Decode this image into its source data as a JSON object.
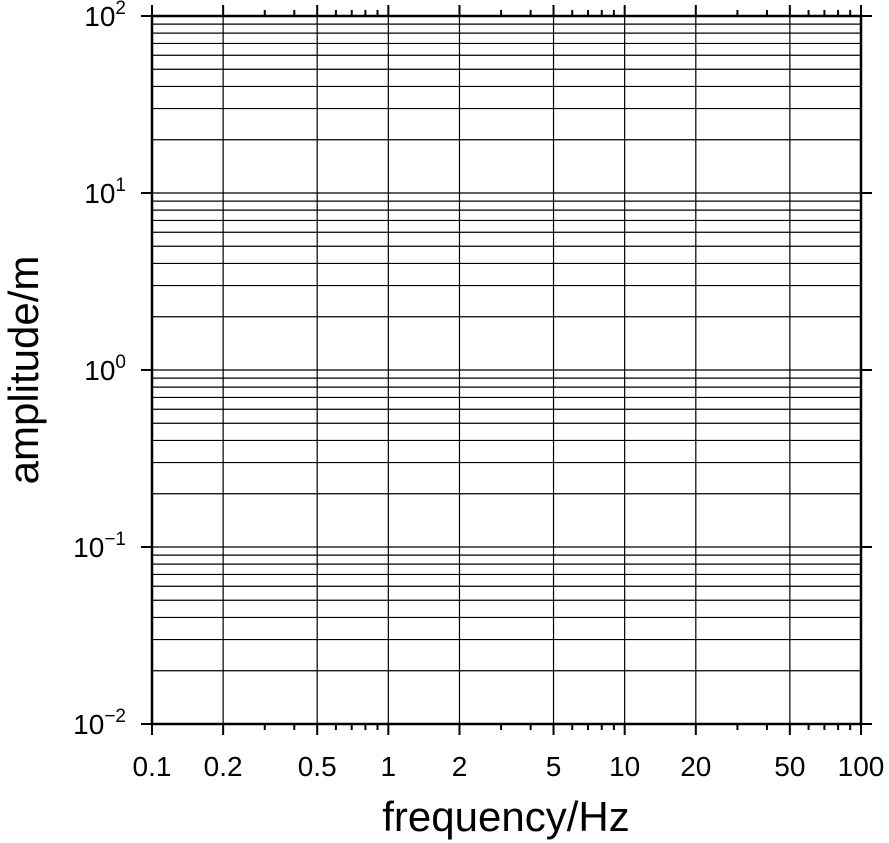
{
  "chart_data": {
    "type": "line",
    "title": "",
    "xlabel": "frequency/Hz",
    "ylabel": "amplitude/m",
    "x_scale": "log",
    "y_scale": "log",
    "xlim": [
      0.1,
      100
    ],
    "ylim": [
      0.01,
      100
    ],
    "grid": true,
    "series": [],
    "x_ticks": [
      {
        "value": 0.1,
        "label": "0.1"
      },
      {
        "value": 0.2,
        "label": "0.2"
      },
      {
        "value": 0.5,
        "label": "0.5"
      },
      {
        "value": 1,
        "label": "1"
      },
      {
        "value": 2,
        "label": "2"
      },
      {
        "value": 5,
        "label": "5"
      },
      {
        "value": 10,
        "label": "10"
      },
      {
        "value": 20,
        "label": "20"
      },
      {
        "value": 50,
        "label": "50"
      },
      {
        "value": 100,
        "label": "100"
      }
    ],
    "x_minor_ticks": [
      0.3,
      0.4,
      0.6,
      0.7,
      0.8,
      0.9,
      3,
      4,
      6,
      7,
      8,
      9,
      30,
      40,
      60,
      70,
      80,
      90
    ],
    "y_ticks": [
      {
        "value": 0.01,
        "base": "10",
        "exp": "−2"
      },
      {
        "value": 0.1,
        "base": "10",
        "exp": "−1"
      },
      {
        "value": 1,
        "base": "10",
        "exp": "0"
      },
      {
        "value": 10,
        "base": "10",
        "exp": "1"
      },
      {
        "value": 100,
        "base": "10",
        "exp": "2"
      }
    ],
    "y_grid": [
      0.01,
      0.02,
      0.03,
      0.04,
      0.05,
      0.06,
      0.07,
      0.08,
      0.09,
      0.1,
      0.2,
      0.3,
      0.4,
      0.5,
      0.6,
      0.7,
      0.8,
      0.9,
      1,
      2,
      3,
      4,
      5,
      6,
      7,
      8,
      9,
      10,
      20,
      30,
      40,
      50,
      60,
      70,
      80,
      90,
      100
    ],
    "colors": {
      "background": "#ffffff",
      "ink": "#000000"
    }
  }
}
